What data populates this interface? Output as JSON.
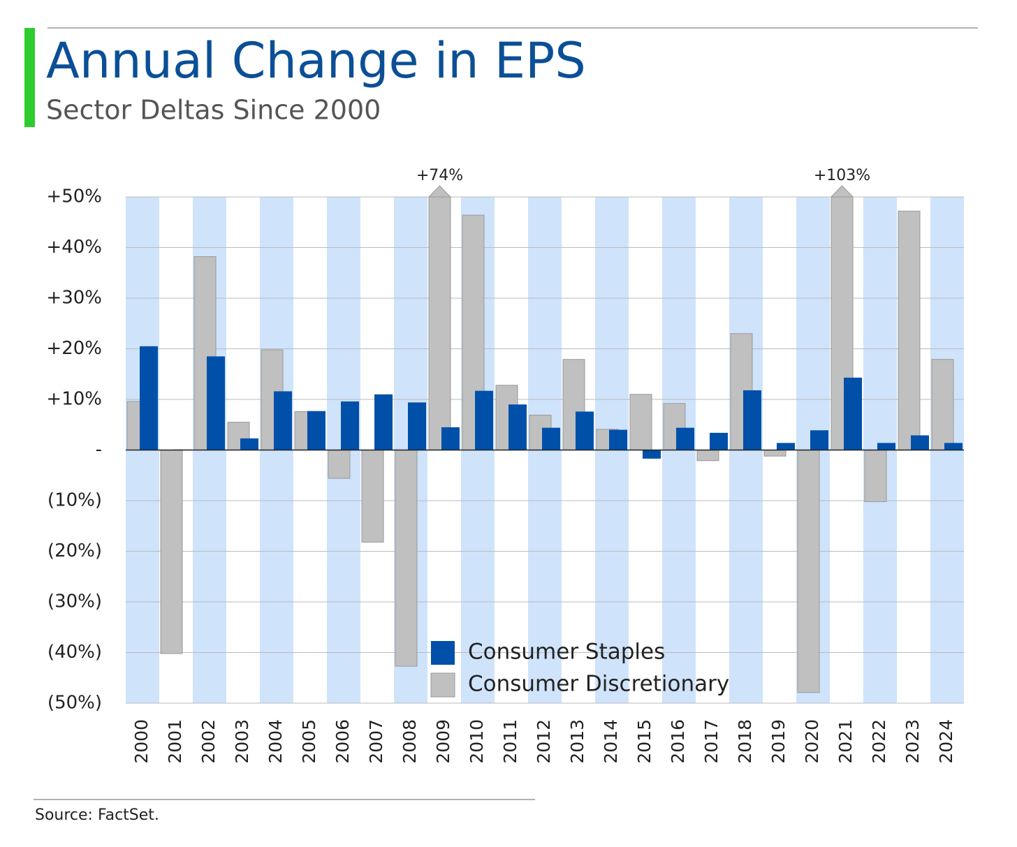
{
  "chart_data": {
    "type": "bar",
    "title": "Annual Change in EPS",
    "subtitle": "Sector Deltas Since 2000",
    "source": "Source: FactSet.",
    "categories": [
      "2000",
      "2001",
      "2002",
      "2003",
      "2004",
      "2005",
      "2006",
      "2007",
      "2008",
      "2009",
      "2010",
      "2011",
      "2012",
      "2013",
      "2014",
      "2015",
      "2016",
      "2017",
      "2018",
      "2019",
      "2020",
      "2021",
      "2022",
      "2023",
      "2024"
    ],
    "series": [
      {
        "name": "Consumer Staples",
        "color": "#0050aa",
        "values": [
          20.5,
          0.1,
          18.5,
          2.3,
          11.6,
          7.7,
          9.6,
          11.0,
          9.4,
          4.5,
          11.7,
          9.0,
          4.4,
          7.6,
          4.0,
          -1.7,
          4.4,
          3.4,
          11.8,
          1.4,
          3.9,
          14.3,
          1.4,
          2.9,
          1.4
        ]
      },
      {
        "name": "Consumer Discretionary",
        "color": "#c0c0c0",
        "values": [
          9.6,
          -40.2,
          38.2,
          5.5,
          19.8,
          7.6,
          -5.6,
          -18.2,
          -42.7,
          74,
          46.4,
          12.8,
          6.9,
          17.9,
          4.1,
          11.0,
          9.2,
          -2.1,
          23.0,
          -1.2,
          -47.9,
          103,
          -10.2,
          47.2,
          17.9
        ],
        "value_labels": [
          null,
          null,
          null,
          null,
          null,
          null,
          null,
          null,
          null,
          "+74%",
          null,
          null,
          null,
          null,
          null,
          null,
          null,
          null,
          null,
          null,
          null,
          "+103%",
          null,
          null,
          null
        ]
      }
    ],
    "ylim": [
      -50,
      50
    ],
    "yticks": [
      {
        "value": -50,
        "label": "(50%)"
      },
      {
        "value": -40,
        "label": "(40%)"
      },
      {
        "value": -30,
        "label": "(30%)"
      },
      {
        "value": -20,
        "label": "(20%)"
      },
      {
        "value": -10,
        "label": "(10%)"
      },
      {
        "value": 0,
        "label": "-"
      },
      {
        "value": 10,
        "label": "+10%"
      },
      {
        "value": 20,
        "label": "+20%"
      },
      {
        "value": 30,
        "label": "+30%"
      },
      {
        "value": 40,
        "label": "+40%"
      },
      {
        "value": 50,
        "label": "+50%"
      }
    ],
    "grid": true,
    "legend": "lower center"
  }
}
